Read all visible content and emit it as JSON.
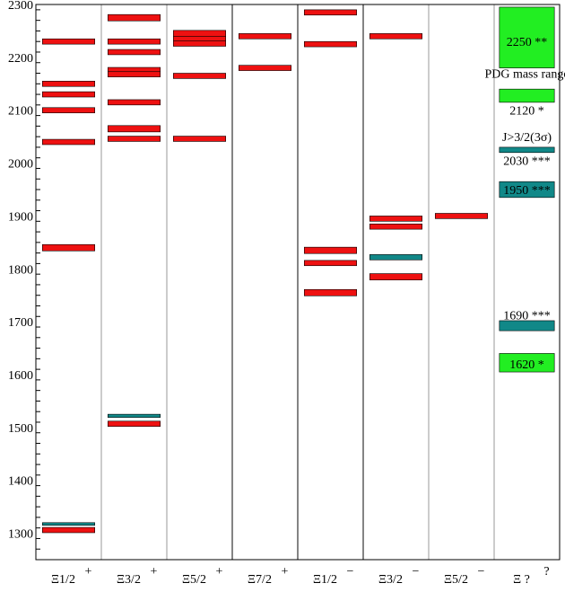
{
  "chart_data": {
    "type": "level-diagram",
    "ylim": [
      1250,
      2300
    ],
    "y_ticks": [
      1300,
      1400,
      1500,
      1600,
      1700,
      1800,
      1900,
      2000,
      2100,
      2200,
      2300
    ],
    "columns": [
      {
        "label": "Ξ1/2",
        "sup": "+"
      },
      {
        "label": "Ξ3/2",
        "sup": "+"
      },
      {
        "label": "Ξ5/2",
        "sup": "+"
      },
      {
        "label": "Ξ7/2",
        "sup": "+"
      },
      {
        "label": "Ξ1/2",
        "sup": "−"
      },
      {
        "label": "Ξ3/2",
        "sup": "−"
      },
      {
        "label": "Ξ5/2",
        "sup": "−"
      },
      {
        "label": "Ξ ?",
        "sup": "?"
      }
    ],
    "levels": [
      {
        "col": 0,
        "y": 2230,
        "err": 5,
        "kind": "model"
      },
      {
        "col": 0,
        "y": 2150,
        "err": 5,
        "kind": "model"
      },
      {
        "col": 0,
        "y": 2130,
        "err": 5,
        "kind": "model"
      },
      {
        "col": 0,
        "y": 2100,
        "err": 5,
        "kind": "model"
      },
      {
        "col": 0,
        "y": 2040,
        "err": 5,
        "kind": "model"
      },
      {
        "col": 0,
        "y": 1840,
        "err": 6,
        "kind": "model"
      },
      {
        "col": 0,
        "y": 1306,
        "err": 5,
        "kind": "model"
      },
      {
        "col": 0,
        "y": 1318,
        "err": 2,
        "kind": "exp"
      },
      {
        "col": 1,
        "y": 2275,
        "err": 6,
        "kind": "model"
      },
      {
        "col": 1,
        "y": 2230,
        "err": 5,
        "kind": "model"
      },
      {
        "col": 1,
        "y": 2210,
        "err": 5,
        "kind": "model"
      },
      {
        "col": 1,
        "y": 2175,
        "err": 6,
        "kind": "model"
      },
      {
        "col": 1,
        "y": 2168,
        "err": 5,
        "kind": "model"
      },
      {
        "col": 1,
        "y": 2115,
        "err": 5,
        "kind": "model"
      },
      {
        "col": 1,
        "y": 2065,
        "err": 6,
        "kind": "model"
      },
      {
        "col": 1,
        "y": 2046,
        "err": 5,
        "kind": "model"
      },
      {
        "col": 1,
        "y": 1507,
        "err": 5,
        "kind": "model"
      },
      {
        "col": 1,
        "y": 1522,
        "err": 3,
        "kind": "exp"
      },
      {
        "col": 2,
        "y": 2245,
        "err": 6,
        "kind": "model"
      },
      {
        "col": 2,
        "y": 2235,
        "err": 5,
        "kind": "model"
      },
      {
        "col": 2,
        "y": 2226,
        "err": 5,
        "kind": "model"
      },
      {
        "col": 2,
        "y": 2165,
        "err": 5,
        "kind": "model"
      },
      {
        "col": 2,
        "y": 2046,
        "err": 5,
        "kind": "model"
      },
      {
        "col": 3,
        "y": 2240,
        "err": 5,
        "kind": "model"
      },
      {
        "col": 3,
        "y": 2180,
        "err": 5,
        "kind": "model"
      },
      {
        "col": 4,
        "y": 2285,
        "err": 5,
        "kind": "model"
      },
      {
        "col": 4,
        "y": 2225,
        "err": 5,
        "kind": "model"
      },
      {
        "col": 4,
        "y": 1835,
        "err": 6,
        "kind": "model"
      },
      {
        "col": 4,
        "y": 1811,
        "err": 5,
        "kind": "model"
      },
      {
        "col": 4,
        "y": 1755,
        "err": 6,
        "kind": "model"
      },
      {
        "col": 5,
        "y": 2240,
        "err": 5,
        "kind": "model"
      },
      {
        "col": 5,
        "y": 1895,
        "err": 5,
        "kind": "model"
      },
      {
        "col": 5,
        "y": 1880,
        "err": 5,
        "kind": "model"
      },
      {
        "col": 5,
        "y": 1785,
        "err": 6,
        "kind": "model"
      },
      {
        "col": 5,
        "y": 1822,
        "err": 5,
        "kind": "exp"
      },
      {
        "col": 6,
        "y": 1900,
        "err": 5,
        "kind": "model"
      }
    ],
    "pdg_boxes": [
      {
        "col": 7,
        "y_low": 2180,
        "y_high": 2295,
        "color": "#22ee22",
        "label": "2250 **",
        "label_y": 2230
      },
      {
        "col": 7,
        "y_low": 2115,
        "y_high": 2140,
        "color": "#22ee22",
        "label": "2120 *",
        "label_y": 2100
      },
      {
        "col": 7,
        "y_low": 2020,
        "y_high": 2030,
        "color": "#118888",
        "label": "2030 ***",
        "label_y": 2005
      },
      {
        "col": 7,
        "y_low": 1935,
        "y_high": 1965,
        "color": "#118888",
        "label": "1950 ***",
        "label_y": 1950
      },
      {
        "col": 7,
        "y_low": 1683,
        "y_high": 1702,
        "color": "#118888",
        "label": "1690 ***",
        "label_y": 1713
      },
      {
        "col": 7,
        "y_low": 1605,
        "y_high": 1640,
        "color": "#22ee22",
        "label": "1620 *",
        "label_y": 1620
      }
    ],
    "annotations": [
      {
        "text": "PDG mass range",
        "y": 2170
      },
      {
        "text": "J>3/2(3σ)",
        "y": 2050
      }
    ],
    "colors": {
      "model": "#ee1111",
      "exp": "#118888",
      "pdg_green": "#22ee22",
      "pdg_teal": "#118888"
    }
  }
}
